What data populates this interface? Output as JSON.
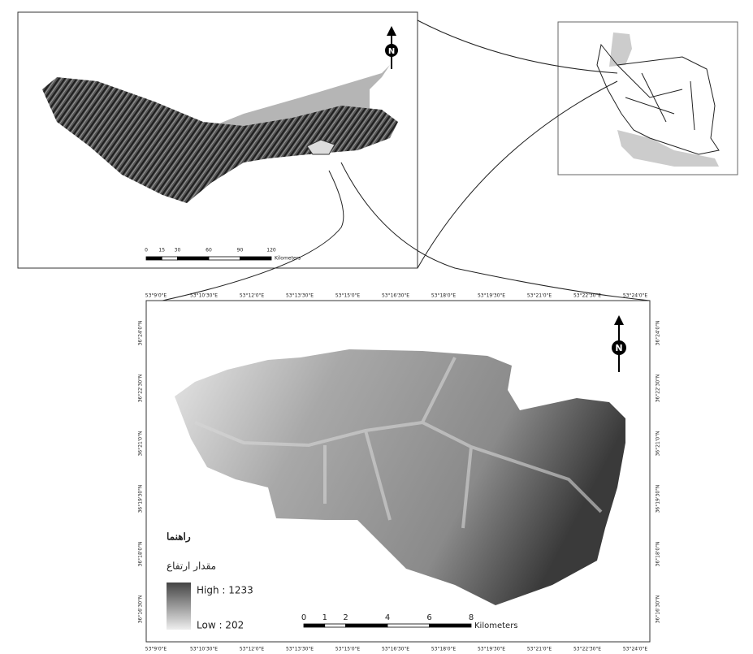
{
  "overview_map": {
    "scale_bar": {
      "ticks": [
        0,
        15,
        30,
        60,
        90,
        120
      ],
      "unit": "Kilometers"
    },
    "north": "N"
  },
  "study_area_map": {
    "lon_labels": [
      "53°9'0\"E",
      "53°10'30\"E",
      "53°12'0\"E",
      "53°13'30\"E",
      "53°15'0\"E",
      "53°16'30\"E",
      "53°18'0\"E",
      "53°19'30\"E",
      "53°21'0\"E",
      "53°22'30\"E",
      "53°24'0\"E"
    ],
    "lat_labels": [
      "36°24'0\"N",
      "36°22'30\"N",
      "36°21'0\"N",
      "36°19'30\"N",
      "36°18'0\"N",
      "36°16'30\"N"
    ],
    "north": "N",
    "legend": {
      "title": "راهنما",
      "subtitle": "مقدار ارتفاع",
      "high": "High : 1233",
      "low": "Low : 202"
    },
    "scale_bar": {
      "ticks": [
        0,
        1,
        2,
        4,
        6,
        8
      ],
      "unit": "Kilometers"
    }
  }
}
